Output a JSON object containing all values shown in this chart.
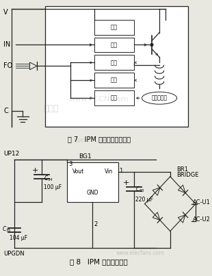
{
  "fig7_title": "图 7   IPM 模块故障检测电路",
  "fig8_title": "图 8   IPM 模块电源电路",
  "background_color": "#e8e8e0",
  "line_color": "#222222",
  "watermark1": "中电网",
  "watermark2": "www.FCCN.com",
  "watermark3": "www.elecfans.com",
  "fig7_boxes": [
    "欠压",
    "驱动",
    "过流",
    "短路",
    "过热"
  ]
}
